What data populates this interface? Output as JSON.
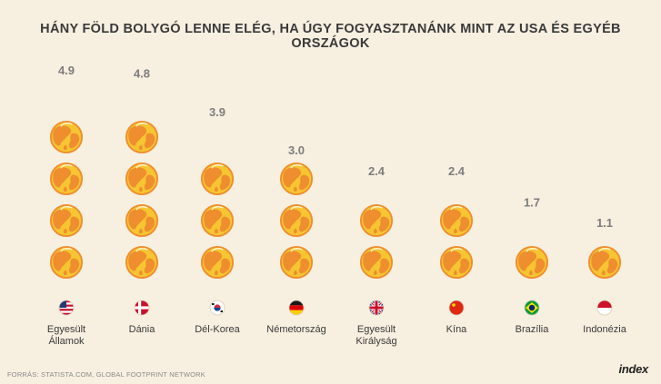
{
  "title": "HÁNY FÖLD BOLYGÓ LENNE ELÉG, HA ÚGY FOGYASZTANÁNK MINT AZ USA ÉS EGYÉB ORSZÁGOK",
  "source": "FORRÁS: STATISTA.COM, GLOBAL FOOTPRINT NETWORK",
  "logo": "index",
  "colors": {
    "background": "#f7efe0",
    "globe_fill": "#f6c531",
    "globe_outline": "#ef8e2e",
    "land": "#ef8e2e",
    "value_label": "#7d7d7d",
    "country_label": "#3a3a3a"
  },
  "chart_data": {
    "type": "bar",
    "encoding": "pictograph",
    "unit_icon": "globe-icon",
    "categories": [
      "Egyesült Államok",
      "Dánia",
      "Dél-Korea",
      "Németország",
      "Egyesült Királyság",
      "Kína",
      "Brazília",
      "Indonézia"
    ],
    "category_lines": [
      [
        "Egyesült",
        "Államok"
      ],
      [
        "Dánia"
      ],
      [
        "Dél-Korea"
      ],
      [
        "Németország"
      ],
      [
        "Egyesült",
        "Királyság"
      ],
      [
        "Kína"
      ],
      [
        "Brazília"
      ],
      [
        "Indonézia"
      ]
    ],
    "flags": [
      "us-flag-icon",
      "dk-flag-icon",
      "kr-flag-icon",
      "de-flag-icon",
      "gb-flag-icon",
      "cn-flag-icon",
      "br-flag-icon",
      "id-flag-icon"
    ],
    "values": [
      4.9,
      4.8,
      3.9,
      3.0,
      2.4,
      2.4,
      1.7,
      1.1
    ],
    "value_labels": [
      "4.9",
      "4.8",
      "3.9",
      "3.0",
      "2.4",
      "2.4",
      "1.7",
      "1.1"
    ],
    "title": "HÁNY FÖLD BOLYGÓ LENNE ELÉG, HA ÚGY FOGYASZTANÁNK MINT AZ USA ÉS EGYÉB ORSZÁGOK",
    "xlabel": "",
    "ylabel": "",
    "ylim": [
      0,
      5
    ],
    "grid": false,
    "legend": "none"
  }
}
